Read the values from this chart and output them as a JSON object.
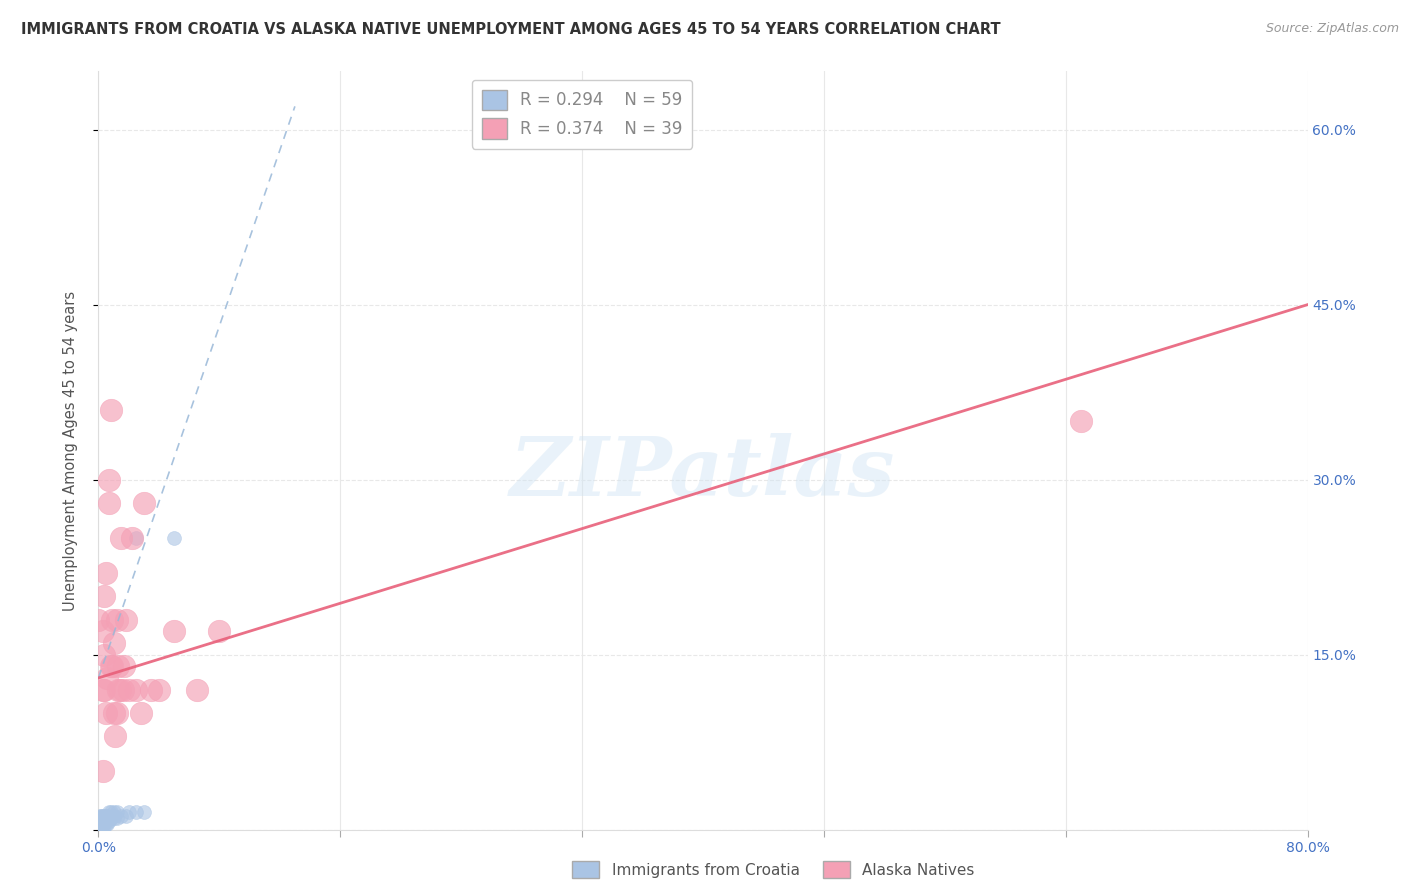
{
  "title": "IMMIGRANTS FROM CROATIA VS ALASKA NATIVE UNEMPLOYMENT AMONG AGES 45 TO 54 YEARS CORRELATION CHART",
  "source": "Source: ZipAtlas.com",
  "ylabel": "Unemployment Among Ages 45 to 54 years",
  "xlim": [
    0.0,
    0.8
  ],
  "ylim": [
    0.0,
    0.65
  ],
  "x_ticks": [
    0.0,
    0.16,
    0.32,
    0.48,
    0.64,
    0.8
  ],
  "x_tick_labels": [
    "0.0%",
    "",
    "",
    "",
    "",
    "80.0%"
  ],
  "y_tick_positions": [
    0.0,
    0.15,
    0.3,
    0.45,
    0.6
  ],
  "y_tick_labels_right": [
    "",
    "15.0%",
    "30.0%",
    "45.0%",
    "60.0%"
  ],
  "legend_r1": "R = 0.294",
  "legend_n1": "N = 59",
  "legend_r2": "R = 0.374",
  "legend_n2": "N = 39",
  "color_blue": "#aac4e4",
  "color_pink": "#f4a0b5",
  "color_blue_line": "#99b8d8",
  "color_pink_line": "#e8607a",
  "watermark": "ZIPatlas",
  "blue_scatter_x": [
    0.0,
    0.0,
    0.0,
    0.0,
    0.0,
    0.0,
    0.0,
    0.0,
    0.0,
    0.0,
    0.0,
    0.0,
    0.001,
    0.001,
    0.001,
    0.001,
    0.001,
    0.001,
    0.001,
    0.001,
    0.002,
    0.002,
    0.002,
    0.002,
    0.002,
    0.002,
    0.003,
    0.003,
    0.003,
    0.003,
    0.003,
    0.004,
    0.004,
    0.004,
    0.004,
    0.005,
    0.005,
    0.005,
    0.005,
    0.006,
    0.006,
    0.006,
    0.007,
    0.007,
    0.007,
    0.008,
    0.008,
    0.01,
    0.01,
    0.01,
    0.012,
    0.012,
    0.015,
    0.018,
    0.02,
    0.025,
    0.025,
    0.03,
    0.05
  ],
  "blue_scatter_y": [
    0.0,
    0.0,
    0.0,
    0.0,
    0.0,
    0.0,
    0.005,
    0.005,
    0.005,
    0.005,
    0.005,
    0.01,
    0.0,
    0.0,
    0.005,
    0.005,
    0.005,
    0.007,
    0.01,
    0.012,
    0.0,
    0.005,
    0.005,
    0.007,
    0.01,
    0.012,
    0.0,
    0.005,
    0.007,
    0.01,
    0.012,
    0.005,
    0.007,
    0.01,
    0.012,
    0.005,
    0.007,
    0.01,
    0.012,
    0.005,
    0.01,
    0.012,
    0.007,
    0.01,
    0.015,
    0.01,
    0.015,
    0.01,
    0.012,
    0.015,
    0.01,
    0.015,
    0.012,
    0.012,
    0.015,
    0.015,
    0.25,
    0.015,
    0.25
  ],
  "pink_scatter_x": [
    0.0,
    0.003,
    0.003,
    0.003,
    0.004,
    0.004,
    0.004,
    0.005,
    0.005,
    0.006,
    0.007,
    0.007,
    0.008,
    0.008,
    0.009,
    0.009,
    0.01,
    0.01,
    0.011,
    0.012,
    0.012,
    0.013,
    0.013,
    0.014,
    0.015,
    0.016,
    0.017,
    0.018,
    0.02,
    0.022,
    0.025,
    0.028,
    0.03,
    0.035,
    0.04,
    0.05,
    0.065,
    0.08,
    0.65
  ],
  "pink_scatter_y": [
    0.18,
    0.05,
    0.12,
    0.17,
    0.12,
    0.15,
    0.2,
    0.1,
    0.22,
    0.13,
    0.28,
    0.3,
    0.14,
    0.36,
    0.14,
    0.18,
    0.1,
    0.16,
    0.08,
    0.1,
    0.18,
    0.12,
    0.14,
    0.12,
    0.25,
    0.12,
    0.14,
    0.18,
    0.12,
    0.25,
    0.12,
    0.1,
    0.28,
    0.12,
    0.12,
    0.17,
    0.12,
    0.17,
    0.35
  ],
  "blue_line_x": [
    0.0,
    0.13
  ],
  "blue_line_y": [
    0.13,
    0.62
  ],
  "pink_line_x": [
    0.0,
    0.8
  ],
  "pink_line_y": [
    0.13,
    0.45
  ],
  "grid_color": "#e8e8e8",
  "title_fontsize": 10.5,
  "source_fontsize": 9
}
